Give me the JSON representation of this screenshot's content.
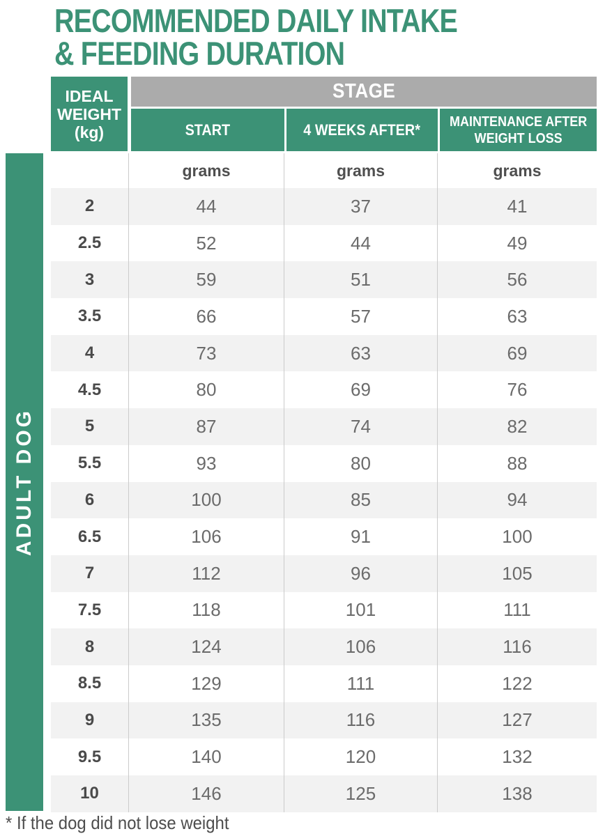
{
  "page": {
    "title_line1": "RECOMMENDED DAILY INTAKE",
    "title_line2": "& FEEDING DURATION",
    "footnote": "* If the dog did not lose weight"
  },
  "sidebar": {
    "label": "ADULT DOG"
  },
  "table": {
    "corner_header": "IDEAL\nWEIGHT\n(kg)",
    "stage_header": "STAGE",
    "columns": {
      "start": "START",
      "week4": "4 WEEKS AFTER*",
      "maintenance": "MAINTENANCE AFTER\nWEIGHT LOSS"
    },
    "unit": "grams",
    "rows": [
      {
        "weight": "2",
        "start": "44",
        "week4": "37",
        "maintenance": "41"
      },
      {
        "weight": "2.5",
        "start": "52",
        "week4": "44",
        "maintenance": "49"
      },
      {
        "weight": "3",
        "start": "59",
        "week4": "51",
        "maintenance": "56"
      },
      {
        "weight": "3.5",
        "start": "66",
        "week4": "57",
        "maintenance": "63"
      },
      {
        "weight": "4",
        "start": "73",
        "week4": "63",
        "maintenance": "69"
      },
      {
        "weight": "4.5",
        "start": "80",
        "week4": "69",
        "maintenance": "76"
      },
      {
        "weight": "5",
        "start": "87",
        "week4": "74",
        "maintenance": "82"
      },
      {
        "weight": "5.5",
        "start": "93",
        "week4": "80",
        "maintenance": "88"
      },
      {
        "weight": "6",
        "start": "100",
        "week4": "85",
        "maintenance": "94"
      },
      {
        "weight": "6.5",
        "start": "106",
        "week4": "91",
        "maintenance": "100"
      },
      {
        "weight": "7",
        "start": "112",
        "week4": "96",
        "maintenance": "105"
      },
      {
        "weight": "7.5",
        "start": "118",
        "week4": "101",
        "maintenance": "111"
      },
      {
        "weight": "8",
        "start": "124",
        "week4": "106",
        "maintenance": "116"
      },
      {
        "weight": "8.5",
        "start": "129",
        "week4": "111",
        "maintenance": "122"
      },
      {
        "weight": "9",
        "start": "135",
        "week4": "116",
        "maintenance": "127"
      },
      {
        "weight": "9.5",
        "start": "140",
        "week4": "120",
        "maintenance": "132"
      },
      {
        "weight": "10",
        "start": "146",
        "week4": "125",
        "maintenance": "138"
      }
    ]
  },
  "colors": {
    "brand_green": "#3C9276",
    "stage_gray": "#ABABAB",
    "row_stripe": "#F2F2F2",
    "grid_line": "#CBCBCB"
  }
}
